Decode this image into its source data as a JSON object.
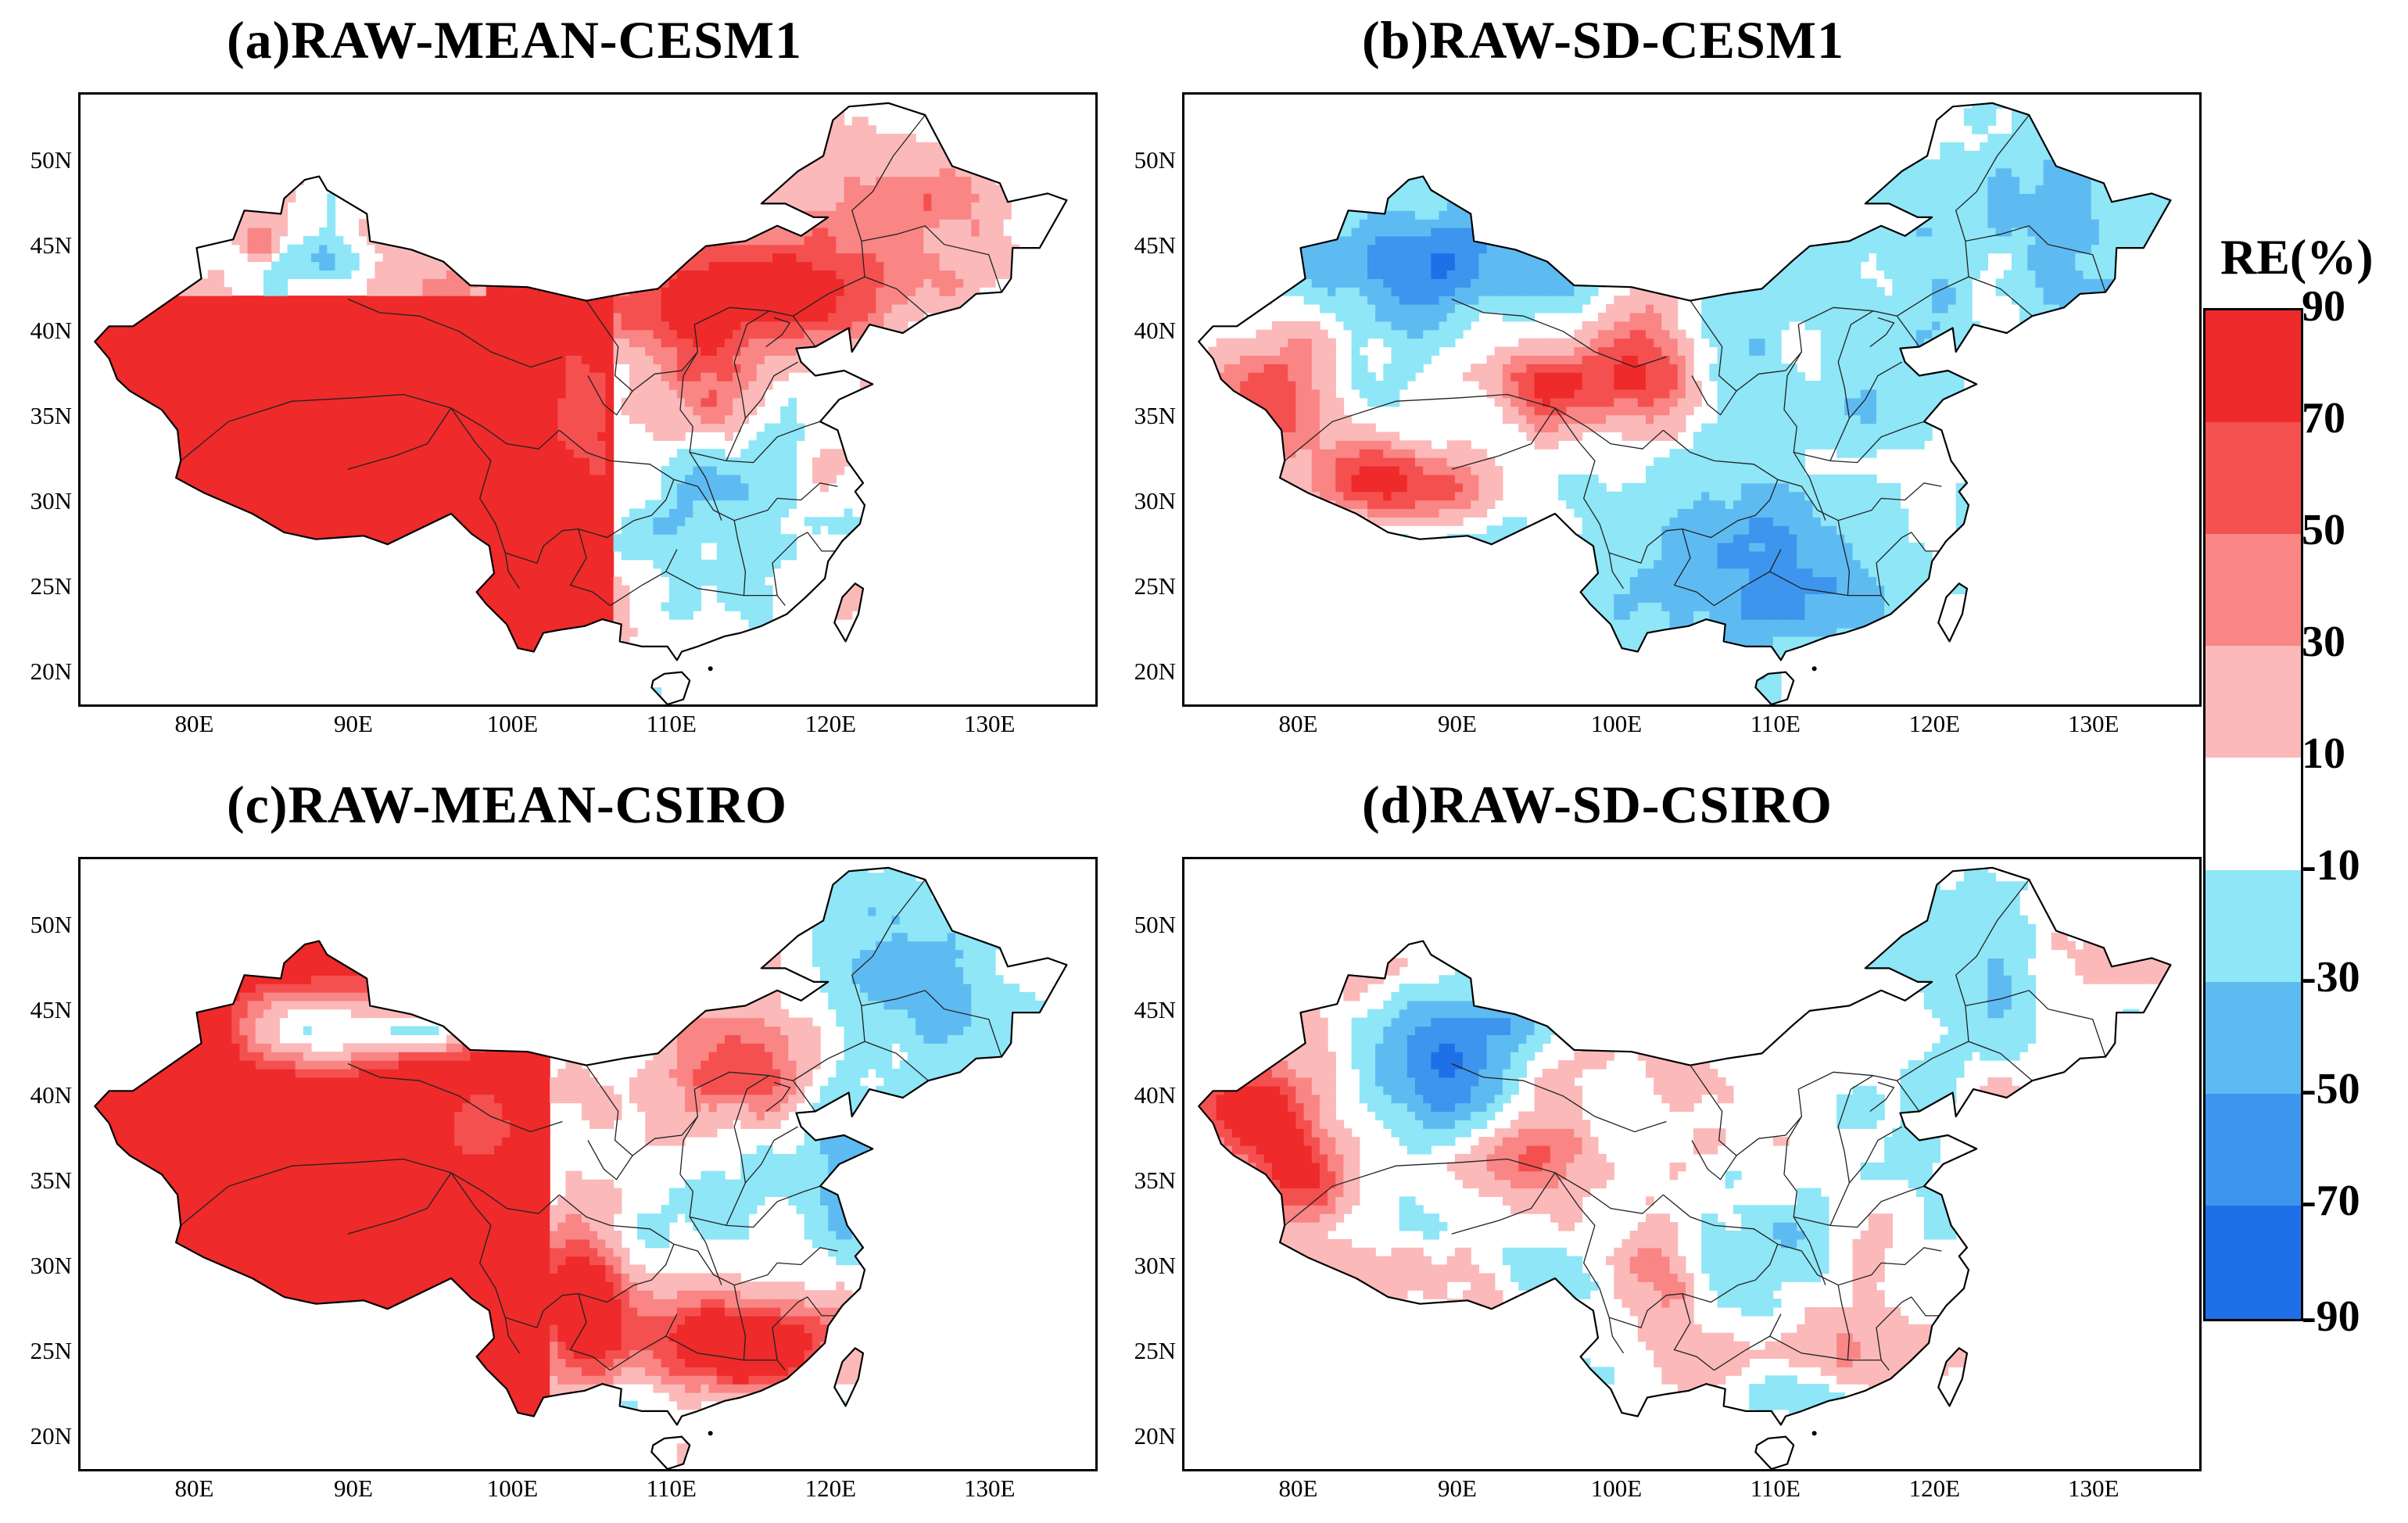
{
  "panels": [
    {
      "id": "a",
      "title": "(a)RAW-MEAN-CESM1",
      "pattern": "mean_cesm"
    },
    {
      "id": "b",
      "title": "(b)RAW-SD-CESM1",
      "pattern": "sd_cesm"
    },
    {
      "id": "c",
      "title": "(c)RAW-MEAN-CSIRO",
      "pattern": "mean_csiro"
    },
    {
      "id": "d",
      "title": "(d)RAW-SD-CSIRO",
      "pattern": "sd_csiro"
    }
  ],
  "lat_labels": [
    "50N",
    "45N",
    "40N",
    "35N",
    "30N",
    "25N",
    "20N"
  ],
  "lon_labels": [
    "80E",
    "90E",
    "100E",
    "110E",
    "120E",
    "130E"
  ],
  "legend": {
    "title": "RE(%)",
    "bins": [
      {
        "label": "90",
        "color": "#ee2a2a"
      },
      {
        "label": "70",
        "color": "#f55050"
      },
      {
        "label": "50",
        "color": "#f98585"
      },
      {
        "label": "30",
        "color": "#fbb9b9"
      },
      {
        "label": "10",
        "color": "#ffffff"
      },
      {
        "label": "-10",
        "color": "#8ee6f7"
      },
      {
        "label": "-30",
        "color": "#5ebbf2"
      },
      {
        "label": "-50",
        "color": "#3d95ee"
      },
      {
        "label": "-70",
        "color": "#1f70e8"
      },
      {
        "label": "-90",
        "color": ""
      }
    ]
  }
}
